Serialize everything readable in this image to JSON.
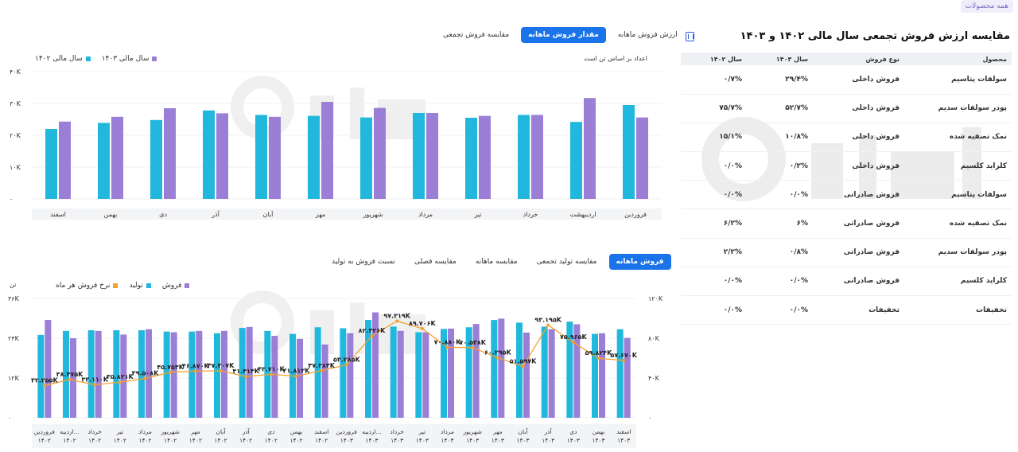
{
  "top_chip": "همه محصولات",
  "panel": {
    "title": "مقایسه ارزش فروش تجمعی سال مالی ۱۴۰۲ و ۱۴۰۳",
    "columns": [
      "محصول",
      "نوع فروش",
      "سال ۱۴۰۳",
      "سال ۱۴۰۲"
    ],
    "rows": [
      [
        "سولفات پتاسیم",
        "فروش داخلی",
        "۲۹/۴%",
        "۰/۷%"
      ],
      [
        "پودر سولفات سدیم",
        "فروش داخلی",
        "۵۲/۷%",
        "۷۵/۷%"
      ],
      [
        "نمک تصفیه شده",
        "فروش داخلی",
        "۱۰/۸%",
        "۱۵/۱%"
      ],
      [
        "کلراید کلسیم",
        "فروش داخلی",
        "۰/۲%",
        "۰/۰%"
      ],
      [
        "سولفات پتاسیم",
        "فروش صادراتی",
        "۰/۰%",
        "۰/۰%"
      ],
      [
        "نمک تصفیه شده",
        "فروش صادراتی",
        "۶%",
        "۶/۲%"
      ],
      [
        "پودر سولفات سدیم",
        "فروش صادراتی",
        "۰/۸%",
        "۲/۲%"
      ],
      [
        "کلراید کلسیم",
        "فروش صادراتی",
        "۰/۰%",
        "۰/۰%"
      ],
      [
        "تخفیفات",
        "تخفیفات",
        "۰/۰%",
        "۰/۰%"
      ]
    ]
  },
  "top_tabs": [
    "ارزش فروش ماهانه",
    "مقدار فروش ماهانه",
    "مقایسه فروش تجمعی"
  ],
  "top_tabs_active": 1,
  "bottom_tabs": [
    "فروش ماهانه",
    "مقایسه تولید تجمعی",
    "مقایسه ماهانه",
    "مقایسه فصلی",
    "نسبت فروش به تولید"
  ],
  "bottom_tabs_active": 0,
  "colors": {
    "cyan": "#22b8dd",
    "purple": "#9b7fd6",
    "orange": "#f3a12f",
    "blue": "#1a73e8"
  },
  "chart_data": [
    {
      "type": "bar",
      "note": "اعداد بر اساس تن است",
      "yticks": [
        "۴۰K",
        "۳۰K",
        "۲۰K",
        "۱۰K",
        "۰"
      ],
      "ylim": [
        0,
        40000
      ],
      "categories": [
        "فروردین",
        "اردیبهشت",
        "خرداد",
        "تیر",
        "مرداد",
        "شهریور",
        "مهر",
        "آبان",
        "آذر",
        "دی",
        "بهمن",
        "اسفند"
      ],
      "series": [
        {
          "name": "سال مالی ۱۴۰۲",
          "color": "#22b8dd",
          "values": [
            29500,
            24200,
            26400,
            25500,
            27000,
            25600,
            26100,
            26400,
            27800,
            24800,
            23900,
            22000
          ]
        },
        {
          "name": "سال مالی ۱۴۰۳",
          "color": "#9b7fd6",
          "values": [
            25600,
            31700,
            26400,
            26100,
            27000,
            28600,
            30500,
            25800,
            26900,
            28500,
            25800,
            24300
          ]
        }
      ],
      "legend_position": "top-left"
    },
    {
      "type": "bar",
      "y_left_label": "تن",
      "y_left_ticks": [
        "۳۶K",
        "۲۴K",
        "۱۲K",
        "۰"
      ],
      "y_left_lim": [
        0,
        36000
      ],
      "y_right_ticks": [
        "۱۲۰K",
        "۸۰K",
        "۴۰K",
        "۰"
      ],
      "y_right_lim": [
        0,
        120000
      ],
      "legend": [
        "فروش",
        "تولید",
        "نرخ فروش هر ماه"
      ],
      "categories": [
        "فروردین ۱۴۰۲",
        "اردیبه... ۱۴۰۲",
        "خرداد ۱۴۰۲",
        "تیر ۱۴۰۲",
        "مرداد ۱۴۰۲",
        "شهریور ۱۴۰۲",
        "مهر ۱۴۰۲",
        "آبان ۱۴۰۲",
        "آذر ۱۴۰۲",
        "دی ۱۴۰۲",
        "بهمن ۱۴۰۲",
        "اسفند ۱۴۰۲",
        "فروردین ۱۴۰۳",
        "اردیبه... ۱۴۰۳",
        "خرداد ۱۴۰۳",
        "تیر ۱۴۰۳",
        "مرداد ۱۴۰۳",
        "شهریور ۱۴۰۳",
        "مهر ۱۴۰۳",
        "آبان ۱۴۰۳",
        "آذر ۱۴۰۳",
        "دی ۱۴۰۳",
        "بهمن ۱۴۰۳",
        "اسفند ۱۴۰۳"
      ],
      "series": [
        {
          "name": "تولید",
          "color": "#22b8dd",
          "values": [
            25000,
            26200,
            26400,
            26400,
            26400,
            26000,
            26000,
            25500,
            27100,
            26200,
            25300,
            27300,
            27000,
            29500,
            27500,
            25800,
            26800,
            27300,
            29500,
            28700,
            27500,
            29000,
            25300,
            26700
          ]
        },
        {
          "name": "فروش",
          "color": "#9b7fd6",
          "values": [
            29500,
            24000,
            26200,
            25100,
            26700,
            25800,
            26200,
            26200,
            27400,
            24700,
            23800,
            22100,
            25500,
            31800,
            26200,
            25800,
            26900,
            28300,
            29900,
            25700,
            26700,
            28200,
            25500,
            24100
          ]
        },
        {
          "name": "نرخ فروش هر ماه",
          "color": "#f3a12f",
          "values": [
            32255,
            38475,
            33110,
            35821,
            39508,
            45753,
            46870,
            47307,
            41414,
            43710,
            41813,
            47384,
            53285,
            82326,
            97319,
            89706,
            70880,
            70538,
            60295,
            51597,
            93195,
            75965,
            59824,
            57670
          ],
          "labels": [
            "۳۲.۲۵۵K",
            "۳۸.۴۷۵K",
            "۳۳.۱۱۰K",
            "۳۵.۸۲۱K",
            "۳۹.۵۰۸K",
            "۴۵.۷۵۳K",
            "۴۶.۸۷۰K",
            "۴۷.۳۰۷K",
            "۴۱.۴۱۴K",
            "۴۳.۷۱۰K",
            "۴۱.۸۱۳K",
            "۴۷.۳۸۴K",
            "۵۳.۲۸۵K",
            "۸۲.۳۲۶K",
            "۹۷.۳۱۹K",
            "۸۹.۷۰۶K",
            "۷۰.۸۸۰K",
            "۷۰.۵۳۸K",
            "۶۰.۲۹۵K",
            "۵۱.۵۹۷K",
            "۹۳.۱۹۵K",
            "۷۵.۹۶۵K",
            "۵۹.۸۲۴K",
            "۵۷.۶۷۰K"
          ]
        }
      ]
    }
  ]
}
